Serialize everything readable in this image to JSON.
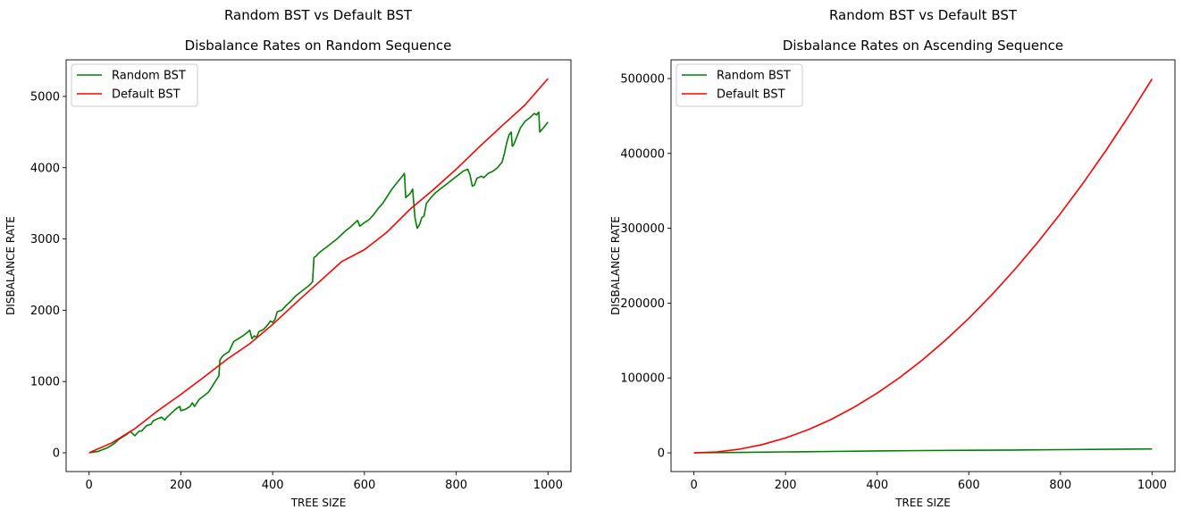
{
  "chart_data": [
    {
      "type": "line",
      "suptitle": "Random BST vs Default BST",
      "title": "Disbalance Rates on Random Sequence",
      "xlabel": "TREE SIZE",
      "ylabel": "DISBALANCE RATE",
      "xlim": [
        -50,
        1050
      ],
      "ylim": [
        -263,
        5513
      ],
      "xticks": [
        0,
        200,
        400,
        600,
        800,
        1000
      ],
      "yticks": [
        0,
        1000,
        2000,
        3000,
        4000,
        5000
      ],
      "legend_position": "upper-left",
      "grid": false,
      "series": [
        {
          "name": "Random BST",
          "color": "#008000",
          "points": [
            [
              0,
              0
            ],
            [
              20,
              20
            ],
            [
              40,
              70
            ],
            [
              55,
              130
            ],
            [
              65,
              190
            ],
            [
              80,
              250
            ],
            [
              90,
              300
            ],
            [
              100,
              240
            ],
            [
              108,
              300
            ],
            [
              115,
              310
            ],
            [
              125,
              380
            ],
            [
              135,
              400
            ],
            [
              140,
              450
            ],
            [
              150,
              480
            ],
            [
              158,
              500
            ],
            [
              165,
              460
            ],
            [
              170,
              500
            ],
            [
              180,
              560
            ],
            [
              190,
              620
            ],
            [
              198,
              650
            ],
            [
              200,
              590
            ],
            [
              210,
              610
            ],
            [
              220,
              650
            ],
            [
              225,
              700
            ],
            [
              230,
              650
            ],
            [
              240,
              750
            ],
            [
              250,
              800
            ],
            [
              260,
              850
            ],
            [
              265,
              900
            ],
            [
              270,
              950
            ],
            [
              275,
              1000
            ],
            [
              280,
              1050
            ],
            [
              283,
              1080
            ],
            [
              285,
              1300
            ],
            [
              290,
              1350
            ],
            [
              295,
              1380
            ],
            [
              305,
              1420
            ],
            [
              315,
              1560
            ],
            [
              325,
              1600
            ],
            [
              335,
              1640
            ],
            [
              345,
              1690
            ],
            [
              350,
              1720
            ],
            [
              355,
              1600
            ],
            [
              360,
              1640
            ],
            [
              365,
              1620
            ],
            [
              370,
              1700
            ],
            [
              380,
              1730
            ],
            [
              390,
              1800
            ],
            [
              395,
              1850
            ],
            [
              400,
              1830
            ],
            [
              405,
              1870
            ],
            [
              410,
              1980
            ],
            [
              420,
              2000
            ],
            [
              430,
              2070
            ],
            [
              440,
              2130
            ],
            [
              450,
              2200
            ],
            [
              460,
              2250
            ],
            [
              470,
              2300
            ],
            [
              480,
              2350
            ],
            [
              487,
              2400
            ],
            [
              490,
              2740
            ],
            [
              495,
              2760
            ],
            [
              500,
              2800
            ],
            [
              510,
              2850
            ],
            [
              520,
              2900
            ],
            [
              530,
              2950
            ],
            [
              540,
              3000
            ],
            [
              550,
              3060
            ],
            [
              560,
              3120
            ],
            [
              570,
              3170
            ],
            [
              580,
              3230
            ],
            [
              585,
              3260
            ],
            [
              590,
              3180
            ],
            [
              600,
              3230
            ],
            [
              610,
              3270
            ],
            [
              620,
              3340
            ],
            [
              630,
              3430
            ],
            [
              640,
              3500
            ],
            [
              650,
              3600
            ],
            [
              660,
              3700
            ],
            [
              670,
              3780
            ],
            [
              680,
              3860
            ],
            [
              687,
              3920
            ],
            [
              690,
              3580
            ],
            [
              700,
              3640
            ],
            [
              705,
              3700
            ],
            [
              710,
              3300
            ],
            [
              715,
              3150
            ],
            [
              720,
              3200
            ],
            [
              725,
              3300
            ],
            [
              730,
              3320
            ],
            [
              735,
              3500
            ],
            [
              745,
              3580
            ],
            [
              755,
              3650
            ],
            [
              765,
              3700
            ],
            [
              775,
              3750
            ],
            [
              785,
              3800
            ],
            [
              795,
              3850
            ],
            [
              805,
              3900
            ],
            [
              815,
              3950
            ],
            [
              825,
              3980
            ],
            [
              830,
              3900
            ],
            [
              835,
              3740
            ],
            [
              840,
              3760
            ],
            [
              845,
              3850
            ],
            [
              855,
              3880
            ],
            [
              860,
              3860
            ],
            [
              870,
              3920
            ],
            [
              880,
              3950
            ],
            [
              890,
              4000
            ],
            [
              900,
              4080
            ],
            [
              905,
              4200
            ],
            [
              910,
              4350
            ],
            [
              915,
              4460
            ],
            [
              920,
              4500
            ],
            [
              922,
              4300
            ],
            [
              925,
              4320
            ],
            [
              930,
              4400
            ],
            [
              940,
              4560
            ],
            [
              950,
              4650
            ],
            [
              960,
              4700
            ],
            [
              970,
              4760
            ],
            [
              975,
              4740
            ],
            [
              980,
              4780
            ],
            [
              982,
              4500
            ],
            [
              990,
              4560
            ],
            [
              1000,
              4640
            ]
          ]
        },
        {
          "name": "Default BST",
          "color": "#ff0000",
          "points": [
            [
              0,
              0
            ],
            [
              50,
              140
            ],
            [
              100,
              340
            ],
            [
              150,
              590
            ],
            [
              200,
              820
            ],
            [
              250,
              1060
            ],
            [
              300,
              1310
            ],
            [
              350,
              1530
            ],
            [
              400,
              1800
            ],
            [
              450,
              2100
            ],
            [
              500,
              2390
            ],
            [
              550,
              2680
            ],
            [
              600,
              2850
            ],
            [
              650,
              3100
            ],
            [
              700,
              3420
            ],
            [
              750,
              3690
            ],
            [
              800,
              3980
            ],
            [
              850,
              4290
            ],
            [
              900,
              4590
            ],
            [
              950,
              4880
            ],
            [
              1000,
              5250
            ]
          ]
        }
      ]
    },
    {
      "type": "line",
      "suptitle": "Random BST vs Default BST",
      "title": "Disbalance Rates on Ascending Sequence",
      "xlabel": "TREE SIZE",
      "ylabel": "DISBALANCE RATE",
      "xlim": [
        -50,
        1050
      ],
      "ylim": [
        -25000,
        525000
      ],
      "xticks": [
        0,
        200,
        400,
        600,
        800,
        1000
      ],
      "yticks": [
        0,
        100000,
        200000,
        300000,
        400000,
        500000
      ],
      "legend_position": "upper-left",
      "grid": false,
      "series": [
        {
          "name": "Random BST",
          "color": "#008000",
          "points": [
            [
              0,
              0
            ],
            [
              100,
              500
            ],
            [
              200,
              1200
            ],
            [
              300,
              1800
            ],
            [
              400,
              2600
            ],
            [
              500,
              3000
            ],
            [
              600,
              3400
            ],
            [
              700,
              3700
            ],
            [
              800,
              4200
            ],
            [
              900,
              4700
            ],
            [
              1000,
              5200
            ]
          ]
        },
        {
          "name": "Default BST",
          "color": "#ff0000",
          "points": [
            [
              0,
              0
            ],
            [
              50,
              1250
            ],
            [
              100,
              4950
            ],
            [
              150,
              11180
            ],
            [
              200,
              19900
            ],
            [
              250,
              31130
            ],
            [
              300,
              44850
            ],
            [
              350,
              61080
            ],
            [
              400,
              79800
            ],
            [
              450,
              101030
            ],
            [
              500,
              124750
            ],
            [
              550,
              150980
            ],
            [
              600,
              179700
            ],
            [
              650,
              210930
            ],
            [
              700,
              244650
            ],
            [
              750,
              280880
            ],
            [
              800,
              319600
            ],
            [
              850,
              360830
            ],
            [
              900,
              404550
            ],
            [
              950,
              450780
            ],
            [
              1000,
              499500
            ]
          ]
        }
      ]
    }
  ]
}
